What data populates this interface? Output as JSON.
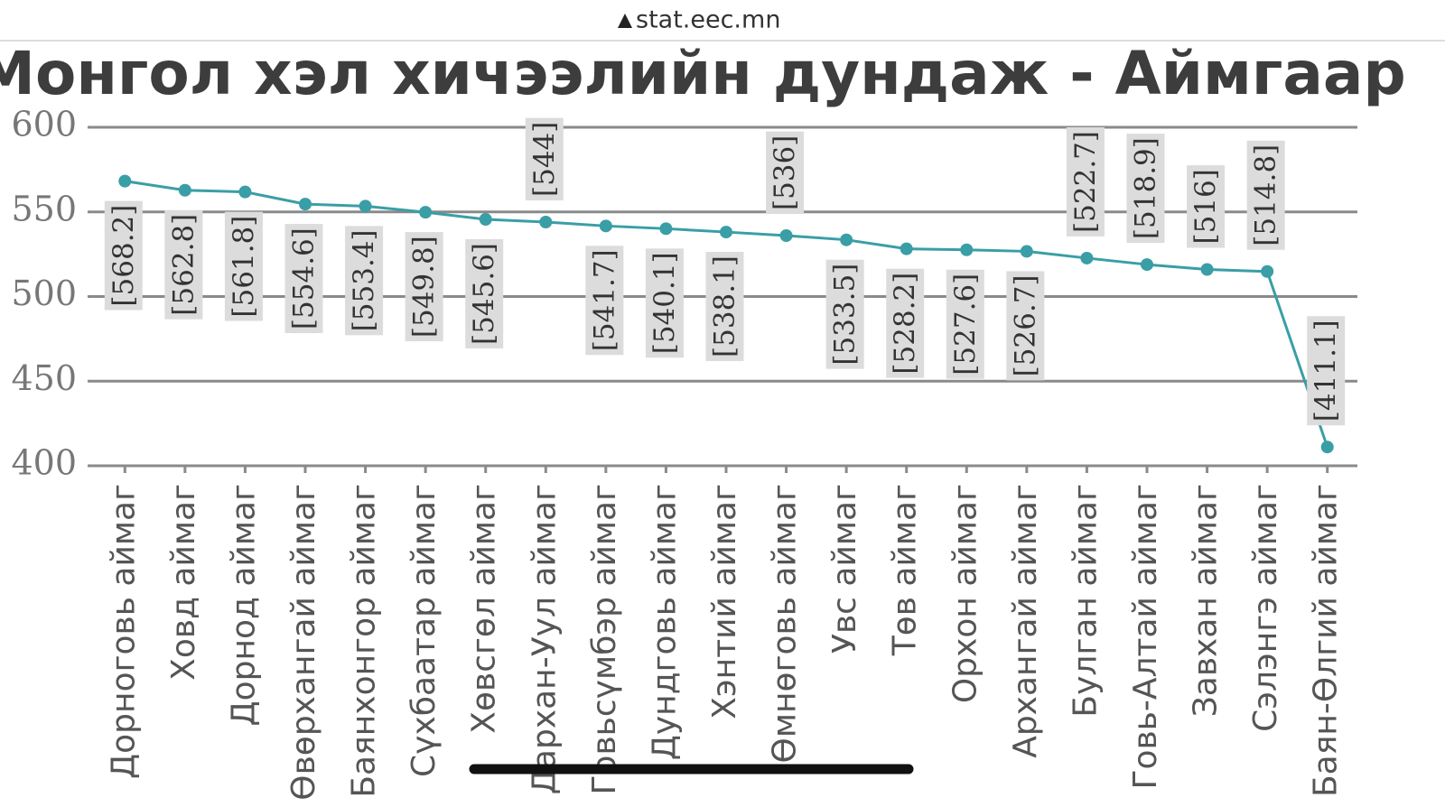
{
  "url": "stat.eec.mn",
  "chart_data": {
    "type": "line",
    "title": "Монгол хэл хичээлийн дундаж - Аймгаар",
    "categories": [
      "Дорноговь аймаг",
      "Ховд аймаг",
      "Дорнод аймаг",
      "Өвөрхангай аймаг",
      "Баянхонгор аймаг",
      "Сүхбаатар аймаг",
      "Хөвсгөл аймаг",
      "Дархан-Уул аймаг",
      "Говьсүмбэр аймаг",
      "Дундговь аймаг",
      "Хэнтий аймаг",
      "Өмнөговь аймаг",
      "Увс аймаг",
      "Төв аймаг",
      "Орхон аймаг",
      "Архангай аймаг",
      "Булган аймаг",
      "Говь-Алтай аймаг",
      "Завхан аймаг",
      "Сэлэнгэ аймаг",
      "Баян-Өлгий аймаг"
    ],
    "values": [
      568.2,
      562.8,
      561.8,
      554.6,
      553.4,
      549.8,
      545.6,
      544,
      541.7,
      540.1,
      538.1,
      536,
      533.5,
      528.2,
      527.6,
      526.7,
      522.7,
      518.9,
      516,
      514.8,
      411.1
    ],
    "value_labels": [
      "[568.2]",
      "[562.8]",
      "[561.8]",
      "[554.6]",
      "[553.4]",
      "[549.8]",
      "[545.6]",
      "[544]",
      "[541.7]",
      "[540.1]",
      "[538.1]",
      "[536]",
      "[533.5]",
      "[528.2]",
      "[527.6]",
      "[526.7]",
      "[522.7]",
      "[518.9]",
      "[516]",
      "[514.8]",
      "[411.1]"
    ],
    "value_label_positions": [
      "below",
      "below",
      "below",
      "below",
      "below",
      "below",
      "below",
      "above",
      "below",
      "below",
      "below",
      "above",
      "below",
      "below",
      "below",
      "below",
      "above",
      "above",
      "above",
      "above",
      "above"
    ],
    "color": "#3a9ea6",
    "ylim": [
      400,
      600
    ],
    "yticks": [
      400,
      450,
      500,
      550,
      600
    ],
    "grid": true
  }
}
